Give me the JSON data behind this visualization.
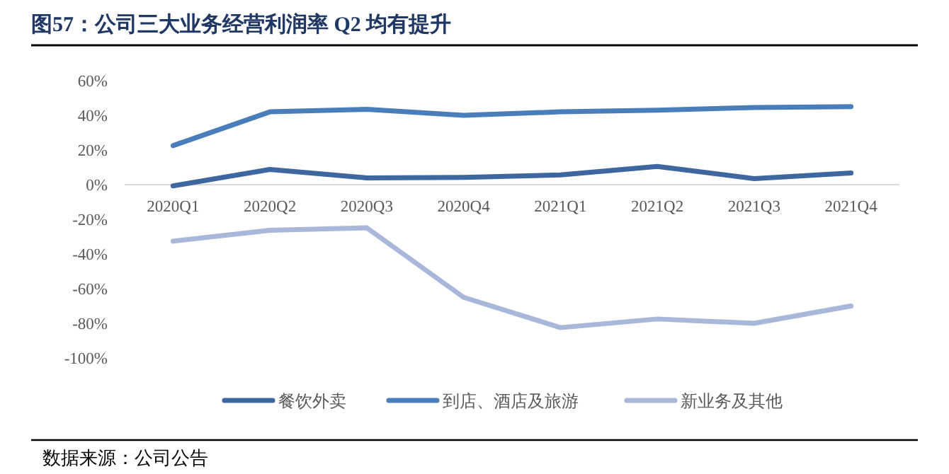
{
  "chart_data": {
    "type": "line",
    "title": "图57：公司三大业务经营利润率 Q2 均有提升",
    "categories": [
      "2020Q1",
      "2020Q2",
      "2020Q3",
      "2020Q4",
      "2021Q1",
      "2021Q2",
      "2021Q3",
      "2021Q4"
    ],
    "series": [
      {
        "name": "餐饮外卖",
        "color": "#3e67a0",
        "values": [
          -0.7,
          8.8,
          3.9,
          4.2,
          5.6,
          10.5,
          3.5,
          6.7
        ]
      },
      {
        "name": "到店、酒店及旅游",
        "color": "#4a7ebb",
        "values": [
          22.5,
          42,
          43.5,
          40,
          42,
          43,
          44.5,
          45
        ]
      },
      {
        "name": "新业务及其他",
        "color": "#a9b8da",
        "values": [
          -32.6,
          -26.3,
          -24.9,
          -65,
          -82.5,
          -77.5,
          -80,
          -70
        ]
      }
    ],
    "ylim": [
      -100,
      60
    ],
    "yticks": [
      {
        "value": -100,
        "label": "-100%"
      },
      {
        "value": -80,
        "label": "-80%"
      },
      {
        "value": -60,
        "label": "-60%"
      },
      {
        "value": -40,
        "label": "-40%"
      },
      {
        "value": -20,
        "label": "-20%"
      },
      {
        "value": 0,
        "label": "0%"
      },
      {
        "value": 20,
        "label": "20%"
      },
      {
        "value": 40,
        "label": "40%"
      },
      {
        "value": 60,
        "label": "60%"
      }
    ],
    "legend": "bottom",
    "grid": false,
    "marker": "none",
    "line_style": "solid",
    "annotations": [
      "数据来源：公司公告"
    ]
  }
}
